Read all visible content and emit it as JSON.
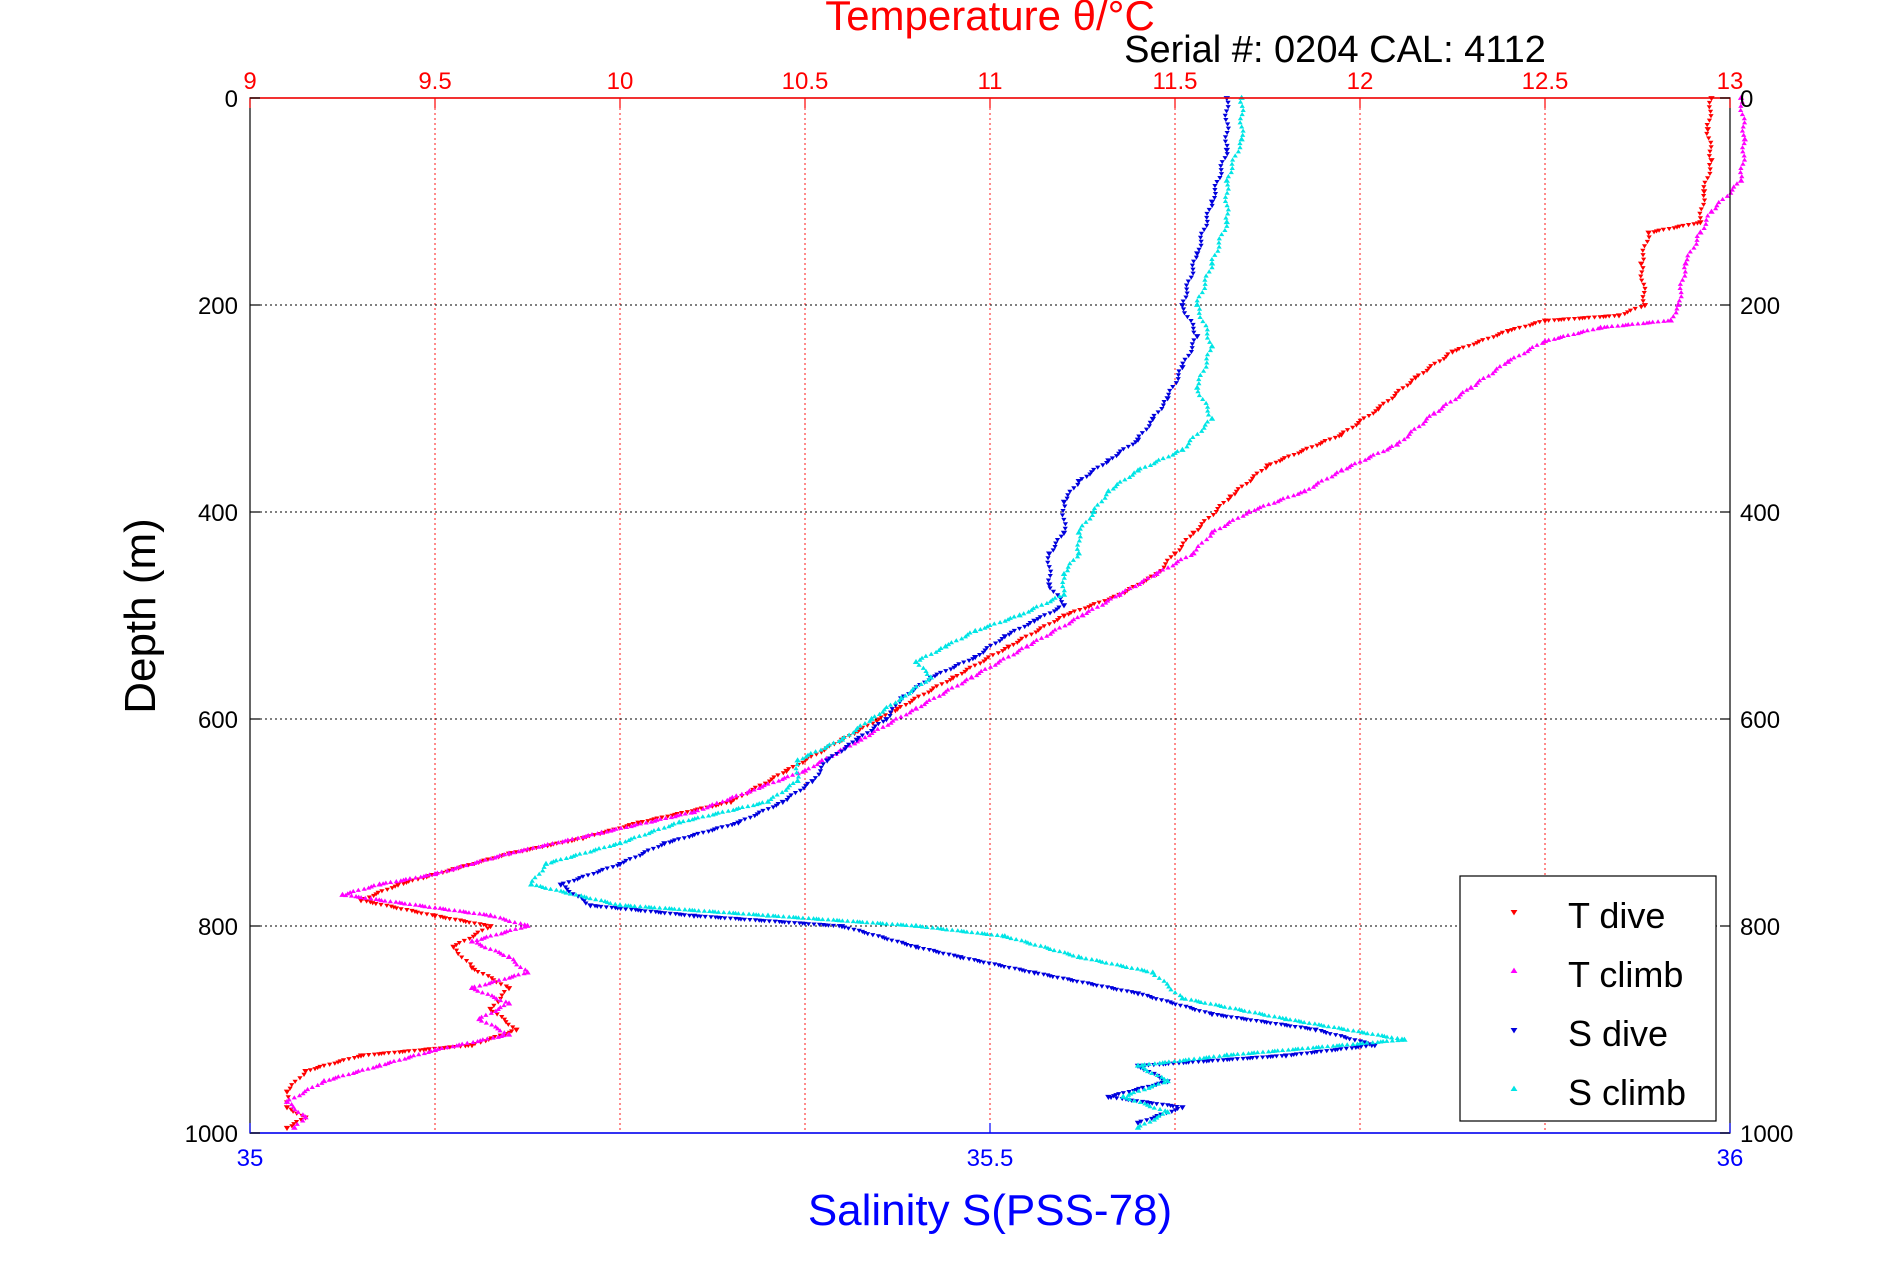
{
  "serial_text": "Serial #: 0204  CAL: 4112",
  "colors": {
    "temperature_axis": "#ff0000",
    "salinity_axis": "#0000ff",
    "t_dive": "#ff0000",
    "t_climb": "#ff00ff",
    "s_dive": "#0000dd",
    "s_climb": "#00e5e5",
    "grid_vertical": "#ff0000",
    "grid_horizontal": "#000000"
  },
  "chart_data": {
    "type": "scatter",
    "title": "Temperature θ/°C",
    "xlabel": "Salinity S(PSS-78)",
    "ylabel": "Depth (m)",
    "ylim": [
      1000,
      0
    ],
    "y_ticks": [
      "0",
      "200",
      "400",
      "600",
      "800",
      "1000"
    ],
    "y_tick_values": [
      0,
      200,
      400,
      600,
      800,
      1000
    ],
    "temperature_axis": {
      "position": "top",
      "range": [
        9,
        13
      ],
      "ticks": [
        "9",
        "9.5",
        "10",
        "10.5",
        "11",
        "11.5",
        "12",
        "12.5",
        "13"
      ],
      "tick_values": [
        9,
        9.5,
        10,
        10.5,
        11,
        11.5,
        12,
        12.5,
        13
      ]
    },
    "salinity_axis": {
      "position": "bottom",
      "range": [
        35,
        36
      ],
      "ticks": [
        "35",
        "35.5",
        "36"
      ],
      "tick_values": [
        35,
        35.5,
        36
      ]
    },
    "grid": true,
    "legend_position": "bottom-right",
    "series": [
      {
        "name": "T dive",
        "axis": "temperature",
        "marker": "triangle-down",
        "points": [
          [
            12.95,
            0
          ],
          [
            12.94,
            30
          ],
          [
            12.95,
            60
          ],
          [
            12.93,
            90
          ],
          [
            12.92,
            120
          ],
          [
            12.78,
            130
          ],
          [
            12.76,
            160
          ],
          [
            12.77,
            200
          ],
          [
            12.7,
            210
          ],
          [
            12.5,
            215
          ],
          [
            12.4,
            225
          ],
          [
            12.25,
            245
          ],
          [
            12.15,
            270
          ],
          [
            12.05,
            300
          ],
          [
            11.95,
            325
          ],
          [
            11.75,
            355
          ],
          [
            11.65,
            385
          ],
          [
            11.55,
            420
          ],
          [
            11.5,
            440
          ],
          [
            11.45,
            460
          ],
          [
            11.35,
            480
          ],
          [
            11.2,
            500
          ],
          [
            11.05,
            530
          ],
          [
            10.9,
            560
          ],
          [
            10.75,
            590
          ],
          [
            10.6,
            620
          ],
          [
            10.45,
            650
          ],
          [
            10.3,
            680
          ],
          [
            10.05,
            700
          ],
          [
            9.9,
            715
          ],
          [
            9.7,
            730
          ],
          [
            9.55,
            745
          ],
          [
            9.4,
            760
          ],
          [
            9.3,
            775
          ],
          [
            9.5,
            790
          ],
          [
            9.65,
            800
          ],
          [
            9.55,
            820
          ],
          [
            9.6,
            840
          ],
          [
            9.7,
            860
          ],
          [
            9.65,
            880
          ],
          [
            9.72,
            900
          ],
          [
            9.6,
            915
          ],
          [
            9.3,
            925
          ],
          [
            9.15,
            940
          ],
          [
            9.1,
            960
          ],
          [
            9.1,
            975
          ],
          [
            9.15,
            985
          ],
          [
            9.1,
            995
          ]
        ]
      },
      {
        "name": "T climb",
        "axis": "temperature",
        "marker": "triangle-up",
        "points": [
          [
            13.03,
            0
          ],
          [
            13.04,
            40
          ],
          [
            13.03,
            80
          ],
          [
            12.95,
            110
          ],
          [
            12.92,
            130
          ],
          [
            12.88,
            160
          ],
          [
            12.86,
            200
          ],
          [
            12.84,
            215
          ],
          [
            12.65,
            222
          ],
          [
            12.5,
            235
          ],
          [
            12.4,
            255
          ],
          [
            12.3,
            280
          ],
          [
            12.2,
            305
          ],
          [
            12.1,
            335
          ],
          [
            11.95,
            360
          ],
          [
            11.85,
            380
          ],
          [
            11.7,
            400
          ],
          [
            11.6,
            420
          ],
          [
            11.55,
            440
          ],
          [
            11.45,
            460
          ],
          [
            11.35,
            480
          ],
          [
            11.25,
            500
          ],
          [
            11.1,
            530
          ],
          [
            10.95,
            560
          ],
          [
            10.8,
            590
          ],
          [
            10.65,
            620
          ],
          [
            10.5,
            650
          ],
          [
            10.35,
            670
          ],
          [
            10.2,
            690
          ],
          [
            9.95,
            710
          ],
          [
            9.7,
            730
          ],
          [
            9.5,
            750
          ],
          [
            9.35,
            760
          ],
          [
            9.25,
            770
          ],
          [
            9.65,
            790
          ],
          [
            9.75,
            800
          ],
          [
            9.6,
            815
          ],
          [
            9.7,
            830
          ],
          [
            9.75,
            845
          ],
          [
            9.6,
            860
          ],
          [
            9.7,
            875
          ],
          [
            9.62,
            890
          ],
          [
            9.7,
            905
          ],
          [
            9.5,
            920
          ],
          [
            9.35,
            935
          ],
          [
            9.2,
            950
          ],
          [
            9.1,
            970
          ],
          [
            9.15,
            985
          ],
          [
            9.12,
            995
          ]
        ]
      },
      {
        "name": "S dive",
        "axis": "salinity",
        "marker": "triangle-down",
        "points": [
          [
            35.66,
            0
          ],
          [
            35.66,
            50
          ],
          [
            35.65,
            100
          ],
          [
            35.64,
            150
          ],
          [
            35.63,
            200
          ],
          [
            35.64,
            230
          ],
          [
            35.63,
            260
          ],
          [
            35.62,
            290
          ],
          [
            35.61,
            310
          ],
          [
            35.6,
            330
          ],
          [
            35.58,
            350
          ],
          [
            35.56,
            370
          ],
          [
            35.55,
            390
          ],
          [
            35.55,
            420
          ],
          [
            35.54,
            440
          ],
          [
            35.54,
            470
          ],
          [
            35.55,
            490
          ],
          [
            35.53,
            505
          ],
          [
            35.51,
            520
          ],
          [
            35.49,
            540
          ],
          [
            35.46,
            560
          ],
          [
            35.44,
            580
          ],
          [
            35.43,
            600
          ],
          [
            35.41,
            620
          ],
          [
            35.39,
            640
          ],
          [
            35.38,
            660
          ],
          [
            35.36,
            680
          ],
          [
            35.33,
            700
          ],
          [
            35.28,
            720
          ],
          [
            35.25,
            740
          ],
          [
            35.21,
            760
          ],
          [
            35.23,
            780
          ],
          [
            35.3,
            790
          ],
          [
            35.4,
            800
          ],
          [
            35.45,
            820
          ],
          [
            35.48,
            830
          ],
          [
            35.53,
            845
          ],
          [
            35.6,
            865
          ],
          [
            35.65,
            885
          ],
          [
            35.72,
            900
          ],
          [
            35.76,
            915
          ],
          [
            35.7,
            925
          ],
          [
            35.6,
            935
          ],
          [
            35.62,
            950
          ],
          [
            35.58,
            965
          ],
          [
            35.63,
            975
          ],
          [
            35.6,
            990
          ]
        ]
      },
      {
        "name": "S climb",
        "axis": "salinity",
        "marker": "triangle-up",
        "points": [
          [
            35.67,
            0
          ],
          [
            35.67,
            40
          ],
          [
            35.66,
            80
          ],
          [
            35.66,
            120
          ],
          [
            35.65,
            160
          ],
          [
            35.64,
            200
          ],
          [
            35.65,
            240
          ],
          [
            35.64,
            280
          ],
          [
            35.65,
            310
          ],
          [
            35.63,
            340
          ],
          [
            35.6,
            360
          ],
          [
            35.58,
            380
          ],
          [
            35.57,
            400
          ],
          [
            35.56,
            420
          ],
          [
            35.56,
            440
          ],
          [
            35.55,
            460
          ],
          [
            35.55,
            480
          ],
          [
            35.52,
            500
          ],
          [
            35.49,
            515
          ],
          [
            35.47,
            530
          ],
          [
            35.45,
            545
          ],
          [
            35.46,
            560
          ],
          [
            35.44,
            580
          ],
          [
            35.42,
            600
          ],
          [
            35.4,
            620
          ],
          [
            35.37,
            640
          ],
          [
            35.37,
            660
          ],
          [
            35.35,
            680
          ],
          [
            35.29,
            700
          ],
          [
            35.25,
            720
          ],
          [
            35.2,
            740
          ],
          [
            35.19,
            760
          ],
          [
            35.25,
            780
          ],
          [
            35.35,
            790
          ],
          [
            35.45,
            800
          ],
          [
            35.51,
            810
          ],
          [
            35.56,
            830
          ],
          [
            35.61,
            845
          ],
          [
            35.63,
            870
          ],
          [
            35.7,
            890
          ],
          [
            35.78,
            910
          ],
          [
            35.66,
            925
          ],
          [
            35.6,
            935
          ],
          [
            35.62,
            950
          ],
          [
            35.59,
            965
          ],
          [
            35.62,
            980
          ],
          [
            35.6,
            995
          ]
        ]
      }
    ]
  }
}
